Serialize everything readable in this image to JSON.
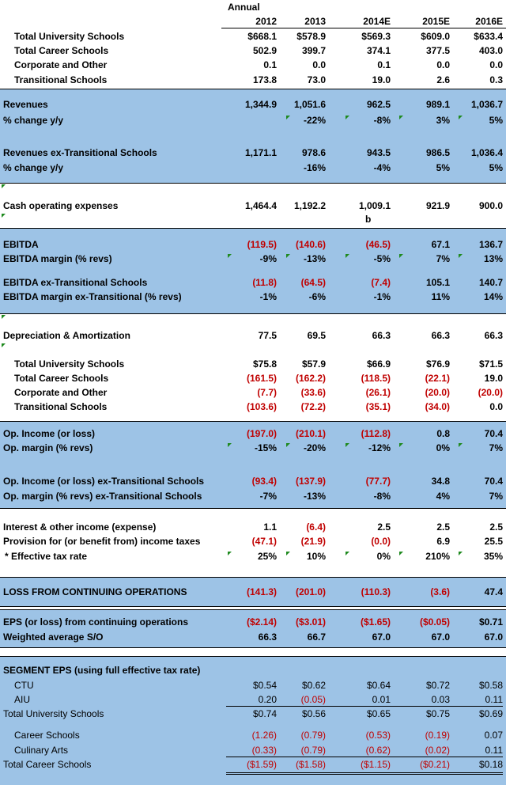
{
  "header": {
    "annual_label": "Annual",
    "years": [
      "2012",
      "2013",
      "2014E",
      "2015E",
      "2016E"
    ]
  },
  "segment_revenue": [
    {
      "label": "Total University Schools",
      "values": [
        "$668.1",
        "$578.9",
        "$569.3",
        "$609.0",
        "$633.4"
      ]
    },
    {
      "label": "Total Career Schools",
      "values": [
        "502.9",
        "399.7",
        "374.1",
        "377.5",
        "403.0"
      ]
    },
    {
      "label": "Corporate and Other",
      "values": [
        "0.1",
        "0.0",
        "0.1",
        "0.0",
        "0.0"
      ]
    },
    {
      "label": "Transitional Schools",
      "values": [
        "173.8",
        "73.0",
        "19.0",
        "2.6",
        "0.3"
      ]
    }
  ],
  "revenues": {
    "label": "Revenues",
    "values": [
      "1,344.9",
      "1,051.6",
      "962.5",
      "989.1",
      "1,036.7"
    ]
  },
  "revenues_change": {
    "label": "% change y/y",
    "values": [
      "",
      "-22%",
      "-8%",
      "3%",
      "5%"
    ]
  },
  "revenues_ex": {
    "label": "Revenues ex-Transitional Schools",
    "values": [
      "1,171.1",
      "978.6",
      "943.5",
      "986.5",
      "1,036.4"
    ]
  },
  "revenues_ex_change": {
    "label": "% change y/y",
    "values": [
      "",
      "-16%",
      "-4%",
      "5%",
      "5%"
    ]
  },
  "cash_opex": {
    "label": "Cash operating expenses",
    "values": [
      "1,464.4",
      "1,192.2",
      "1,009.1",
      "921.9",
      "900.0"
    ],
    "note": "b"
  },
  "ebitda": {
    "label": "EBITDA",
    "values": [
      "(119.5)",
      "(140.6)",
      "(46.5)",
      "67.1",
      "136.7"
    ]
  },
  "ebitda_margin": {
    "label": "EBITDA margin (% revs)",
    "values": [
      "-9%",
      "-13%",
      "-5%",
      "7%",
      "13%"
    ]
  },
  "ebitda_ex": {
    "label": "EBITDA ex-Transitional Schools",
    "values": [
      "(11.8)",
      "(64.5)",
      "(7.4)",
      "105.1",
      "140.7"
    ]
  },
  "ebitda_ex_margin": {
    "label": "EBITDA margin ex-Transitional (% revs)",
    "values": [
      "-1%",
      "-6%",
      "-1%",
      "11%",
      "14%"
    ]
  },
  "da": {
    "label": "Depreciation & Amortization",
    "values": [
      "77.5",
      "69.5",
      "66.3",
      "66.3",
      "66.3"
    ]
  },
  "segment_opinc": [
    {
      "label": "Total University Schools",
      "values": [
        "$75.8",
        "$57.9",
        "$66.9",
        "$76.9",
        "$71.5"
      ]
    },
    {
      "label": "Total Career Schools",
      "values": [
        "(161.5)",
        "(162.2)",
        "(118.5)",
        "(22.1)",
        "19.0"
      ]
    },
    {
      "label": "Corporate and Other",
      "values": [
        "(7.7)",
        "(33.6)",
        "(26.1)",
        "(20.0)",
        "(20.0)"
      ]
    },
    {
      "label": "Transitional Schools",
      "values": [
        "(103.6)",
        "(72.2)",
        "(35.1)",
        "(34.0)",
        "0.0"
      ]
    }
  ],
  "opinc": {
    "label": "Op. Income (or loss)",
    "values": [
      "(197.0)",
      "(210.1)",
      "(112.8)",
      "0.8",
      "70.4"
    ]
  },
  "opmargin": {
    "label": "Op. margin (% revs)",
    "values": [
      "-15%",
      "-20%",
      "-12%",
      "0%",
      "7%"
    ]
  },
  "opinc_ex": {
    "label": "Op. Income (or loss) ex-Transitional Schools",
    "values": [
      "(93.4)",
      "(137.9)",
      "(77.7)",
      "34.8",
      "70.4"
    ]
  },
  "opmargin_ex": {
    "label": "Op. margin (% revs) ex-Transitional Schools",
    "values": [
      "-7%",
      "-13%",
      "-8%",
      "4%",
      "7%"
    ]
  },
  "interest": {
    "label": "Interest & other income (expense)",
    "values": [
      "1.1",
      "(6.4)",
      "2.5",
      "2.5",
      "2.5"
    ]
  },
  "tax": {
    "label": "Provision for (or benefit from) income taxes",
    "values": [
      "(47.1)",
      "(21.9)",
      "(0.0)",
      "6.9",
      "25.5"
    ]
  },
  "eff_tax": {
    "label": "* Effective tax rate",
    "values": [
      "25%",
      "10%",
      "0%",
      "210%",
      "35%"
    ]
  },
  "loss_cont": {
    "label": "LOSS FROM CONTINUING OPERATIONS",
    "values": [
      "(141.3)",
      "(201.0)",
      "(110.3)",
      "(3.6)",
      "47.4"
    ]
  },
  "eps": {
    "label": "EPS (or loss) from continuing operations",
    "values": [
      "($2.14)",
      "($3.01)",
      "($1.65)",
      "($0.05)",
      "$0.71"
    ]
  },
  "shares": {
    "label": "Weighted average S/O",
    "values": [
      "66.3",
      "66.7",
      "67.0",
      "67.0",
      "67.0"
    ]
  },
  "seg_eps_title": "SEGMENT EPS (using full effective tax rate)",
  "seg_eps": [
    {
      "label": "CTU",
      "values": [
        "$0.54",
        "$0.62",
        "$0.64",
        "$0.72",
        "$0.58"
      ]
    },
    {
      "label": "AIU",
      "values": [
        "0.20",
        "(0.05)",
        "0.01",
        "0.03",
        "0.11"
      ]
    },
    {
      "label": "Total University Schools",
      "values": [
        "$0.74",
        "$0.56",
        "$0.65",
        "$0.75",
        "$0.69"
      ]
    },
    {
      "label": "Career Schools",
      "values": [
        "(1.26)",
        "(0.79)",
        "(0.53)",
        "(0.19)",
        "0.07"
      ]
    },
    {
      "label": "Culinary Arts",
      "values": [
        "(0.33)",
        "(0.79)",
        "(0.62)",
        "(0.02)",
        "0.11"
      ]
    },
    {
      "label": "Total Career Schools",
      "values": [
        "($1.59)",
        "($1.58)",
        "($1.15)",
        "($0.21)",
        "$0.18"
      ]
    }
  ],
  "colors": {
    "band": "#9dc3e6",
    "negative": "#c00000",
    "comment_marker": "#1f8a1f"
  }
}
